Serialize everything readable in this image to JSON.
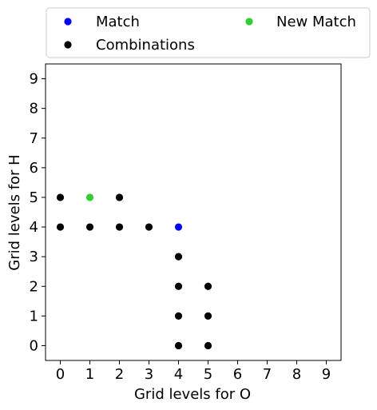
{
  "chart_data": {
    "type": "scatter",
    "title": "",
    "xlabel": "Grid levels for O",
    "ylabel": "Grid levels for H",
    "xlim": [
      -0.5,
      9.5
    ],
    "ylim": [
      -0.5,
      9.5
    ],
    "xticks": [
      0,
      1,
      2,
      3,
      4,
      5,
      6,
      7,
      8,
      9
    ],
    "yticks": [
      0,
      1,
      2,
      3,
      4,
      5,
      6,
      7,
      8,
      9
    ],
    "grid": false,
    "legend_position": "above",
    "legend_order": [
      "Match",
      "New Match",
      "Combinations"
    ],
    "series": [
      {
        "name": "Combinations",
        "color": "#000000",
        "points": [
          {
            "x": 0,
            "y": 5
          },
          {
            "x": 2,
            "y": 5
          },
          {
            "x": 0,
            "y": 4
          },
          {
            "x": 1,
            "y": 4
          },
          {
            "x": 2,
            "y": 4
          },
          {
            "x": 3,
            "y": 4
          },
          {
            "x": 4,
            "y": 3
          },
          {
            "x": 4,
            "y": 2
          },
          {
            "x": 5,
            "y": 2
          },
          {
            "x": 4,
            "y": 1
          },
          {
            "x": 5,
            "y": 1
          },
          {
            "x": 4,
            "y": 0
          },
          {
            "x": 5,
            "y": 0
          }
        ]
      },
      {
        "name": "New Match",
        "color": "#32cd32",
        "points": [
          {
            "x": 1,
            "y": 5
          }
        ]
      },
      {
        "name": "Match",
        "color": "#0000ff",
        "points": [
          {
            "x": 4,
            "y": 4
          }
        ]
      }
    ]
  }
}
